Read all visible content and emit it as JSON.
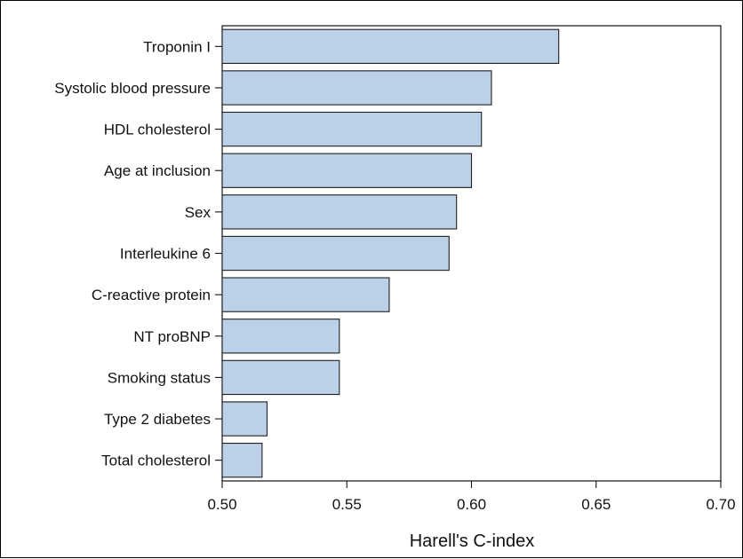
{
  "chart_data": {
    "type": "bar",
    "orientation": "horizontal",
    "categories": [
      "Troponin I",
      "Systolic blood pressure",
      "HDL cholesterol",
      "Age at inclusion",
      "Sex",
      "Interleukine 6",
      "C-reactive protein",
      "NT proBNP",
      "Smoking status",
      "Type 2 diabetes",
      "Total cholesterol"
    ],
    "values": [
      0.635,
      0.608,
      0.604,
      0.6,
      0.594,
      0.591,
      0.567,
      0.547,
      0.547,
      0.518,
      0.516
    ],
    "xlabel": "Harell's C-index",
    "ylabel": "",
    "xlim": [
      0.5,
      0.7
    ],
    "xticks": [
      "0.50",
      "0.55",
      "0.60",
      "0.65",
      "0.70"
    ],
    "grid": false,
    "colors": {
      "bar_fill": "#bcd0e8",
      "bar_stroke": "#1f1f1f",
      "axis": "#111111"
    }
  }
}
